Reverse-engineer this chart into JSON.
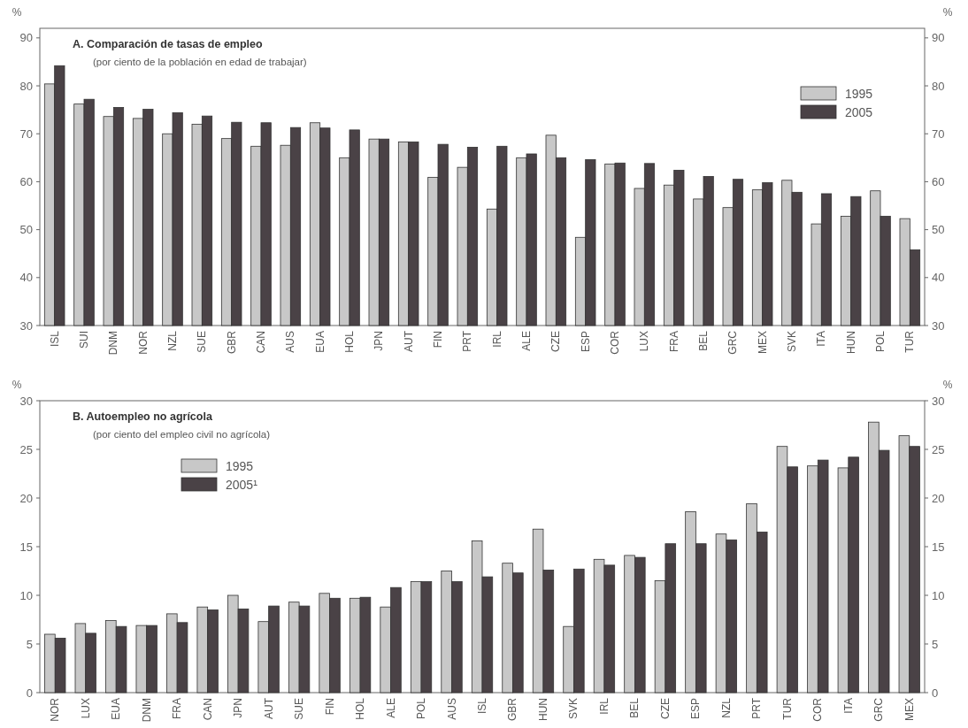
{
  "chart_data": [
    {
      "type": "bar",
      "title": "A. Comparación de tasas de empleo",
      "subtitle": "(por ciento de la población en edad de trabajar)",
      "ylabel": "%",
      "y2label": "%",
      "categories": [
        "ISL",
        "SUI",
        "DNM",
        "NOR",
        "NZL",
        "SUE",
        "GBR",
        "CAN",
        "AUS",
        "EUA",
        "HOL",
        "JPN",
        "AUT",
        "FIN",
        "PRT",
        "IRL",
        "ALE",
        "CZE",
        "ESP",
        "COR",
        "LUX",
        "FRA",
        "BEL",
        "GRC",
        "MEX",
        "SVK",
        "ITA",
        "HUN",
        "POL",
        "TUR"
      ],
      "series": [
        {
          "name": "1995",
          "color": "#c8c8c8",
          "values": [
            80.4,
            76.2,
            73.6,
            73.2,
            70,
            72,
            69,
            67.4,
            67.6,
            72.3,
            65,
            68.9,
            68.3,
            60.9,
            63,
            54.3,
            65,
            69.7,
            48.4,
            63.7,
            58.6,
            59.3,
            56.4,
            54.6,
            58.3,
            60.3,
            51.2,
            52.8,
            58.1,
            52.3
          ]
        },
        {
          "name": "2005",
          "color": "#4a4246",
          "values": [
            84.2,
            77.2,
            75.5,
            75.1,
            74.4,
            73.7,
            72.4,
            72.3,
            71.3,
            71.2,
            70.8,
            68.9,
            68.3,
            67.8,
            67.2,
            67.4,
            65.8,
            65,
            64.6,
            63.9,
            63.8,
            62.4,
            61.1,
            60.5,
            59.8,
            57.8,
            57.5,
            56.9,
            52.8,
            45.8
          ]
        }
      ],
      "ylim": [
        30,
        92
      ],
      "yticks": [
        30,
        40,
        50,
        60,
        70,
        80,
        90
      ],
      "y2lim": [
        30,
        92
      ],
      "y2ticks": [
        30,
        40,
        50,
        60,
        70,
        80,
        90
      ],
      "legend": "top right",
      "grid": false
    },
    {
      "type": "bar",
      "title": "B. Autoempleo no agrícola",
      "subtitle": "(por ciento del empleo civil no agrícola)",
      "ylabel": "%",
      "y2label": "%",
      "categories": [
        "NOR",
        "LUX",
        "EUA",
        "DNM",
        "FRA",
        "CAN",
        "JPN",
        "AUT",
        "SUE",
        "FIN",
        "HOL",
        "ALE",
        "POL",
        "AUS",
        "ISL",
        "GBR",
        "HUN",
        "SVK",
        "IRL",
        "BEL",
        "CZE",
        "ESP",
        "NZL",
        "PRT",
        "TUR",
        "COR",
        "ITA",
        "GRC",
        "MEX"
      ],
      "series": [
        {
          "name": "1995",
          "color": "#c8c8c8",
          "values": [
            6,
            7.1,
            7.4,
            6.9,
            8.1,
            8.8,
            10,
            7.3,
            9.3,
            10.2,
            9.7,
            8.8,
            11.4,
            12.5,
            15.6,
            13.3,
            16.8,
            6.8,
            13.7,
            14.1,
            11.5,
            18.6,
            16.3,
            19.4,
            25.3,
            23.3,
            23.1,
            27.8,
            26.4
          ]
        },
        {
          "name": "2005¹",
          "color": "#4a4246",
          "values": [
            5.6,
            6.1,
            6.8,
            6.9,
            7.2,
            8.5,
            8.6,
            8.9,
            8.9,
            9.7,
            9.8,
            10.8,
            11.4,
            11.4,
            11.9,
            12.3,
            12.6,
            12.7,
            13.1,
            13.9,
            15.3,
            15.3,
            15.7,
            16.5,
            23.2,
            23.9,
            24.2,
            24.9,
            25.3
          ]
        }
      ],
      "ylim": [
        0,
        30
      ],
      "yticks": [
        0,
        5,
        10,
        15,
        20,
        25,
        30
      ],
      "y2lim": [
        0,
        30
      ],
      "y2ticks": [
        0,
        5,
        10,
        15,
        20,
        25,
        30
      ],
      "legend": "top left",
      "grid": false
    }
  ]
}
